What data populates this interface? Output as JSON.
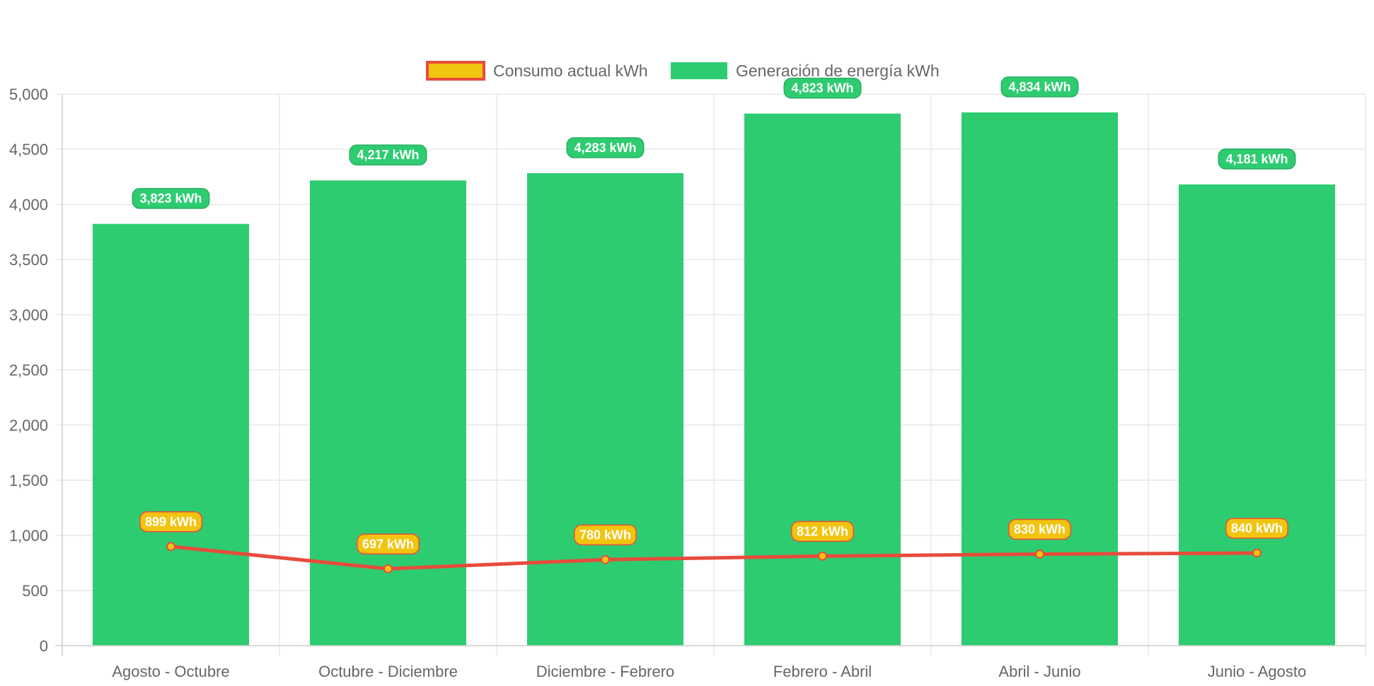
{
  "chart_data": {
    "type": "bar",
    "title": "",
    "xlabel": "",
    "ylabel": "",
    "ylim": [
      0,
      5000
    ],
    "y_ticks": [
      0,
      500,
      1000,
      1500,
      2000,
      2500,
      3000,
      3500,
      4000,
      4500,
      5000
    ],
    "y_tick_labels": [
      "0",
      "500",
      "1,000",
      "1,500",
      "2,000",
      "2,500",
      "3,000",
      "3,500",
      "4,000",
      "4,500",
      "5,000"
    ],
    "grid": true,
    "legend_position": "top-center",
    "categories": [
      "Agosto - Octubre",
      "Octubre - Diciembre",
      "Diciembre - Febrero",
      "Febrero - Abril",
      "Abril - Junio",
      "Junio - Agosto"
    ],
    "series": [
      {
        "name": "Consumo actual kWh",
        "type": "line",
        "values": [
          899,
          697,
          780,
          812,
          830,
          840
        ],
        "labels": [
          "899 kWh",
          "697 kWh",
          "780 kWh",
          "812 kWh",
          "830 kWh",
          "840 kWh"
        ],
        "color": "#e74c3c",
        "fill_color": "#f1c40f"
      },
      {
        "name": "Generación de energía kWh",
        "type": "bar",
        "values": [
          3823,
          4217,
          4283,
          4823,
          4834,
          4181
        ],
        "labels": [
          "3,823 kWh",
          "4,217 kWh",
          "4,283 kWh",
          "4,823 kWh",
          "4,834 kWh",
          "4,181 kWh"
        ],
        "color": "#2ecc71",
        "label_border_color": "#27ae60"
      }
    ]
  }
}
